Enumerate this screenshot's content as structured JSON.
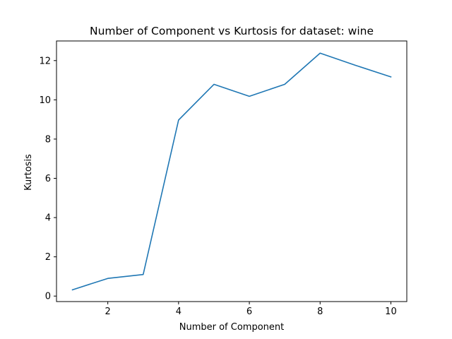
{
  "chart_data": {
    "type": "line",
    "title": "Number of Component vs Kurtosis for dataset: wine",
    "xlabel": "Number of Component",
    "ylabel": "Kurtosis",
    "x": [
      1,
      2,
      3,
      4,
      5,
      6,
      7,
      8,
      9,
      10
    ],
    "series": [
      {
        "values": [
          0.32,
          0.9,
          1.1,
          8.97,
          10.79,
          10.18,
          10.79,
          12.38,
          11.76,
          11.17
        ],
        "color": "#1f77b4"
      }
    ],
    "xticks": [
      2,
      4,
      6,
      8,
      10
    ],
    "yticks": [
      0,
      2,
      4,
      6,
      8,
      10,
      12
    ],
    "xlim": [
      0.55,
      10.45
    ],
    "ylim": [
      -0.28,
      13.0
    ],
    "grid": false,
    "legend": "none"
  }
}
